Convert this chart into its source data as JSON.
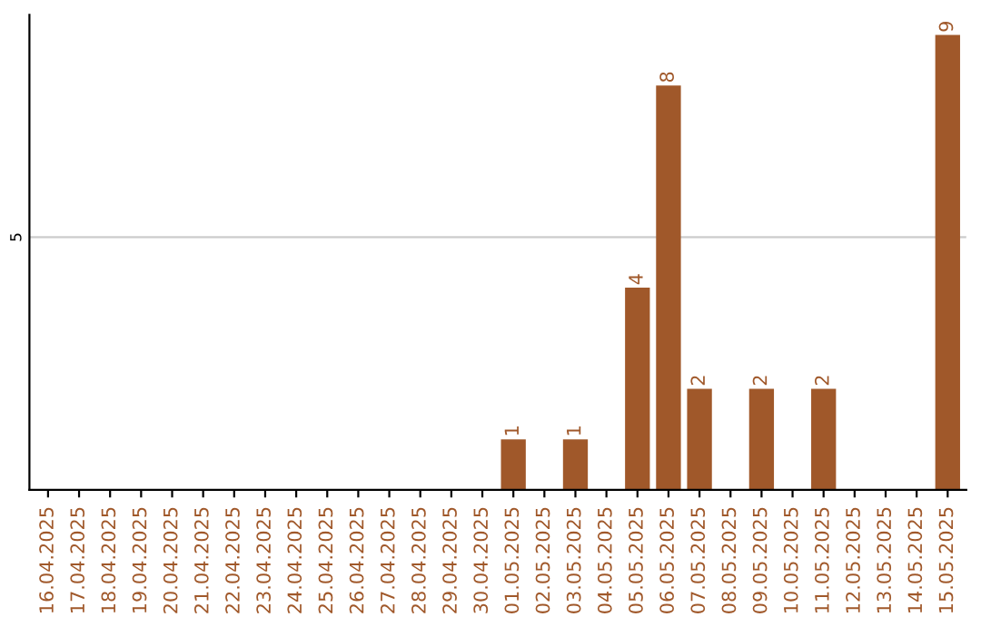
{
  "chart_data": {
    "type": "bar",
    "categories": [
      "16.04.2025",
      "17.04.2025",
      "18.04.2025",
      "19.04.2025",
      "20.04.2025",
      "21.04.2025",
      "22.04.2025",
      "23.04.2025",
      "24.04.2025",
      "25.04.2025",
      "26.04.2025",
      "27.04.2025",
      "28.04.2025",
      "29.04.2025",
      "30.04.2025",
      "01.05.2025",
      "02.05.2025",
      "03.05.2025",
      "04.05.2025",
      "05.05.2025",
      "06.05.2025",
      "07.05.2025",
      "08.05.2025",
      "09.05.2025",
      "10.05.2025",
      "11.05.2025",
      "12.05.2025",
      "13.05.2025",
      "14.05.2025",
      "15.05.2025"
    ],
    "values": [
      null,
      null,
      null,
      null,
      null,
      null,
      null,
      null,
      null,
      null,
      null,
      null,
      null,
      null,
      null,
      1,
      null,
      1,
      null,
      4,
      8,
      2,
      null,
      2,
      null,
      2,
      null,
      null,
      null,
      9
    ],
    "data_labels": true,
    "color": "#a0582a",
    "ylim": [
      0,
      9.4
    ],
    "yticks": [
      5
    ],
    "grid": "y",
    "legend": false
  }
}
